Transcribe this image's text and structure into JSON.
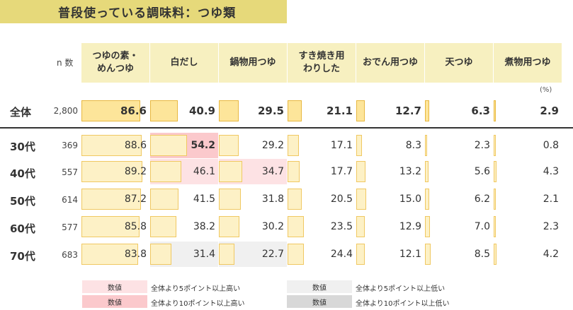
{
  "title": "普段使っている調味料：つゆ類",
  "n_header": "n 数",
  "unit": "(%)",
  "columns": [
    "つゆの素・\nめんつゆ",
    "白だし",
    "鍋物用つゆ",
    "すき焼き用\nわりした",
    "おでん用つゆ",
    "天つゆ",
    "煮物用つゆ"
  ],
  "colors": {
    "title_band": "#e6d97a",
    "header": "#f7f0c0",
    "bar_fill": "#fdf1c6",
    "bar_border": "#f0c862",
    "high5": "#fde2e4",
    "high10": "#fbc9cc",
    "low5": "#f0f0f0",
    "low10": "#d8d8d8"
  },
  "chart_data": {
    "type": "table",
    "title": "普段使っている調味料：つゆ類",
    "unit": "(%)",
    "columns": [
      "つゆの素・めんつゆ",
      "白だし",
      "鍋物用つゆ",
      "すき焼き用わりした",
      "おでん用つゆ",
      "天つゆ",
      "煮物用つゆ"
    ],
    "rows": [
      {
        "label": "全体",
        "n": "2,800",
        "values": [
          86.6,
          40.9,
          29.5,
          21.1,
          12.7,
          6.3,
          2.9
        ],
        "highlight": [
          "",
          "",
          "",
          "",
          "",
          "",
          ""
        ]
      },
      {
        "label": "30代",
        "n": "369",
        "values": [
          88.6,
          54.2,
          29.2,
          17.1,
          8.3,
          2.3,
          0.8
        ],
        "highlight": [
          "",
          "high10",
          "",
          "",
          "",
          "",
          ""
        ]
      },
      {
        "label": "40代",
        "n": "557",
        "values": [
          89.2,
          46.1,
          34.7,
          17.7,
          13.2,
          5.6,
          4.3
        ],
        "highlight": [
          "",
          "high5",
          "high5",
          "",
          "",
          "",
          ""
        ]
      },
      {
        "label": "50代",
        "n": "614",
        "values": [
          87.2,
          41.5,
          31.8,
          20.5,
          15.0,
          6.2,
          2.1
        ],
        "highlight": [
          "",
          "",
          "",
          "",
          "",
          "",
          ""
        ]
      },
      {
        "label": "60代",
        "n": "577",
        "values": [
          85.8,
          38.2,
          30.2,
          23.5,
          12.9,
          7.0,
          2.3
        ],
        "highlight": [
          "",
          "",
          "",
          "",
          "",
          "",
          ""
        ]
      },
      {
        "label": "70代",
        "n": "683",
        "values": [
          83.8,
          31.4,
          22.7,
          24.4,
          12.1,
          8.5,
          4.2
        ],
        "highlight": [
          "",
          "low5",
          "low5",
          "",
          "",
          "",
          ""
        ]
      }
    ]
  },
  "legend": [
    {
      "box": "数値",
      "text": "全体より5ポイント以上高い",
      "style": "high5"
    },
    {
      "box": "数値",
      "text": "全体より10ポイント以上高い",
      "style": "high10"
    },
    {
      "box": "数値",
      "text": "全体より5ポイント以上低い",
      "style": "low5"
    },
    {
      "box": "数値",
      "text": "全体より10ポイント以上低い",
      "style": "low10"
    }
  ]
}
